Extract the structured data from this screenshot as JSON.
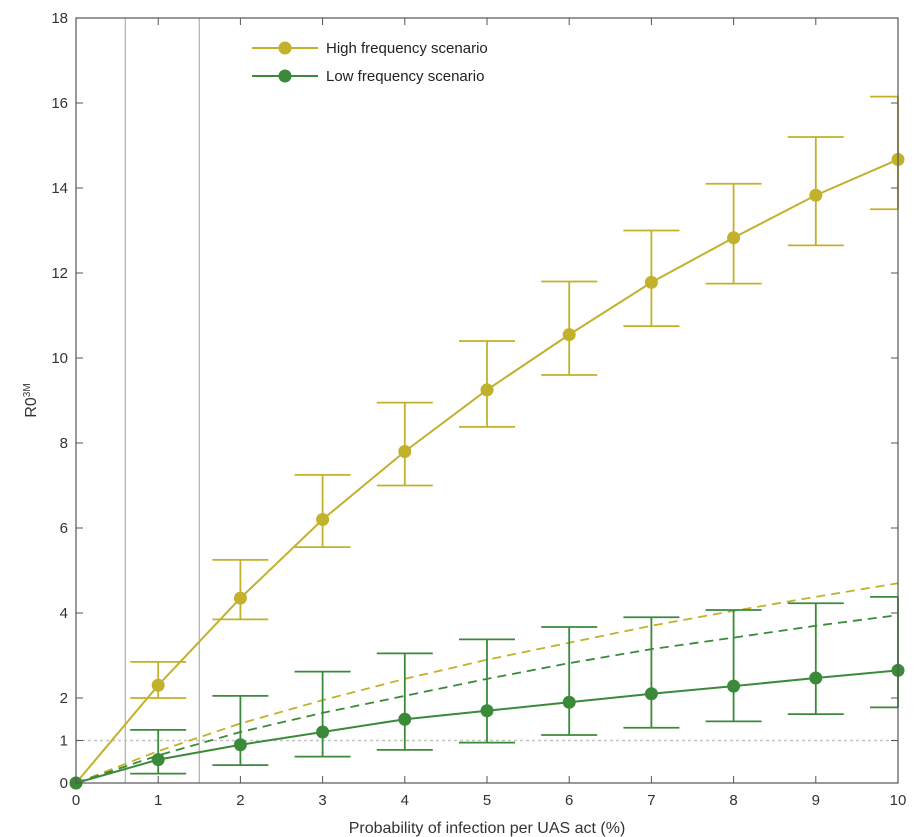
{
  "chart_data": {
    "type": "line",
    "xlabel": "Probability of infection per UAS act (%)",
    "ylabel": "R0",
    "ylabel_superscript": "3M",
    "xlim": [
      0,
      10
    ],
    "ylim": [
      0,
      18
    ],
    "x_ticks": [
      "0",
      "1",
      "2",
      "3",
      "4",
      "5",
      "6",
      "7",
      "8",
      "9",
      "10"
    ],
    "y_ticks": [
      "0",
      "1",
      "2",
      "4",
      "6",
      "8",
      "10",
      "12",
      "14",
      "16",
      "18"
    ],
    "grid": false,
    "legend_position": "top-left",
    "vertical_reference_lines_x": [
      0.6,
      1.5
    ],
    "horizontal_reference_line_y": 1,
    "x": [
      0,
      1,
      2,
      3,
      4,
      5,
      6,
      7,
      8,
      9,
      10
    ],
    "series": [
      {
        "name": "High frequency scenario",
        "color": "#c2b12a",
        "values": [
          0,
          2.3,
          4.35,
          6.2,
          7.8,
          9.25,
          10.55,
          11.78,
          12.83,
          13.83,
          14.67
        ],
        "err_low": [
          0,
          2.0,
          3.85,
          5.55,
          7.0,
          8.38,
          9.6,
          10.75,
          11.75,
          12.65,
          13.5
        ],
        "err_high": [
          0,
          2.85,
          5.25,
          7.25,
          8.95,
          10.4,
          11.8,
          13.0,
          14.1,
          15.2,
          16.15
        ],
        "dashed_values": [
          0,
          0.75,
          1.4,
          1.95,
          2.45,
          2.9,
          3.3,
          3.7,
          4.05,
          4.38,
          4.7
        ]
      },
      {
        "name": "Low frequency scenario",
        "color": "#3a8a3a",
        "values": [
          0,
          0.55,
          0.9,
          1.2,
          1.5,
          1.7,
          1.9,
          2.1,
          2.28,
          2.47,
          2.65
        ],
        "err_low": [
          0,
          0.22,
          0.42,
          0.62,
          0.78,
          0.95,
          1.13,
          1.3,
          1.45,
          1.62,
          1.78
        ],
        "err_high": [
          0,
          1.25,
          2.05,
          2.62,
          3.05,
          3.38,
          3.67,
          3.9,
          4.07,
          4.23,
          4.38
        ],
        "dashed_values": [
          0,
          0.65,
          1.2,
          1.65,
          2.05,
          2.45,
          2.82,
          3.15,
          3.42,
          3.7,
          3.95
        ]
      }
    ]
  }
}
